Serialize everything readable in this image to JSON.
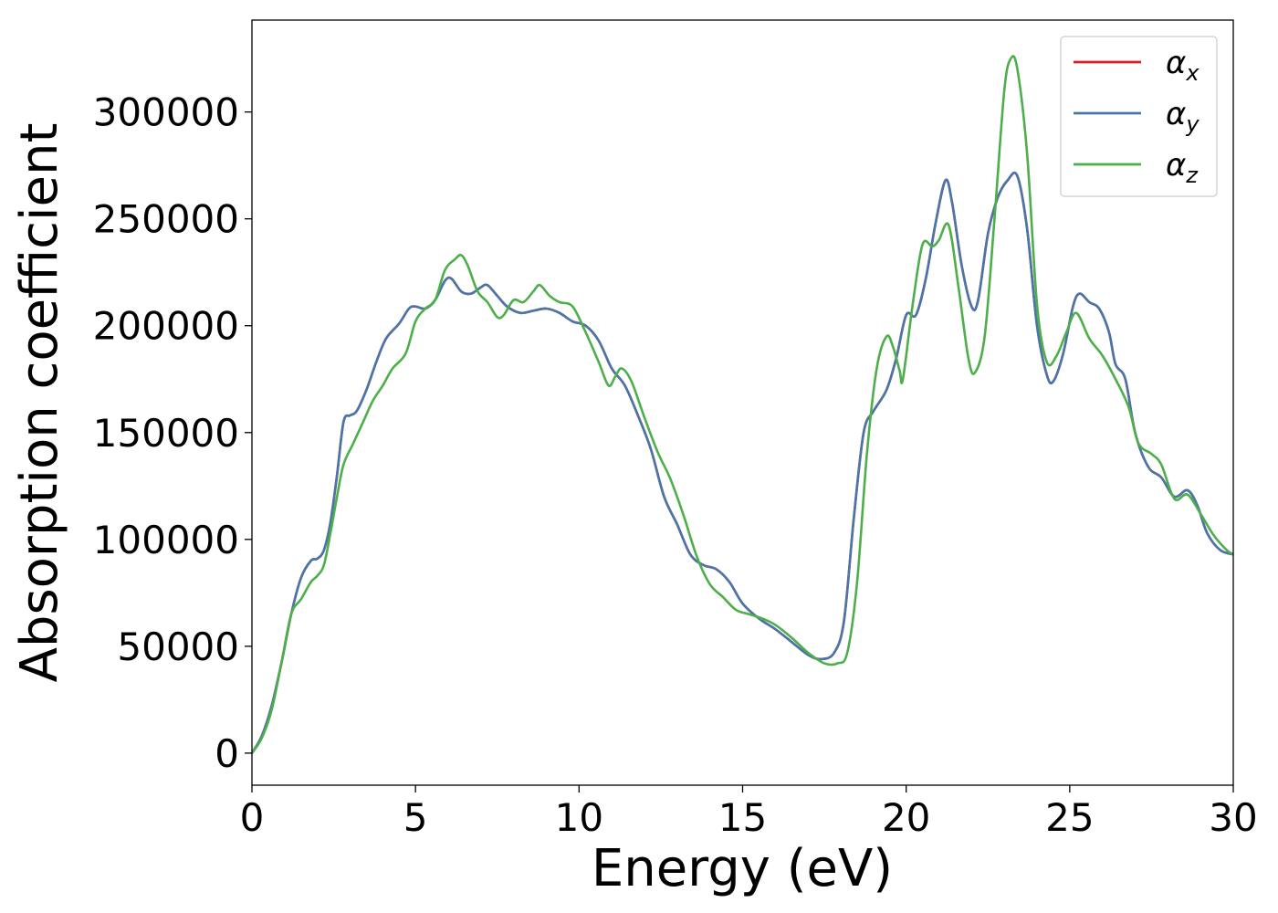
{
  "chart_data": {
    "type": "line",
    "title": "",
    "xlabel": "Energy (eV)",
    "ylabel": "Absorption coefficient",
    "xlim": [
      0,
      30
    ],
    "ylim": [
      -15000,
      343000
    ],
    "x_ticks": [
      0,
      5,
      10,
      15,
      20,
      25,
      30
    ],
    "x_tick_labels": [
      "0",
      "5",
      "10",
      "15",
      "20",
      "25",
      "30"
    ],
    "y_ticks": [
      0,
      50000,
      100000,
      150000,
      200000,
      250000,
      300000
    ],
    "y_tick_labels": [
      "0",
      "50000",
      "100000",
      "150000",
      "200000",
      "250000",
      "300000"
    ],
    "grid": false,
    "legend_position": "top-right",
    "series": [
      {
        "name": "α_x",
        "label_main": "α",
        "label_sub": "x",
        "color": "#e41a1c",
        "points": [
          [
            0,
            0
          ],
          [
            0.3,
            8000
          ],
          [
            0.6,
            22000
          ],
          [
            0.9,
            42000
          ],
          [
            1.2,
            65000
          ],
          [
            1.5,
            82000
          ],
          [
            1.8,
            90000
          ],
          [
            2.0,
            91000
          ],
          [
            2.2,
            95000
          ],
          [
            2.4,
            108000
          ],
          [
            2.6,
            130000
          ],
          [
            2.8,
            155000
          ],
          [
            3.0,
            158000
          ],
          [
            3.2,
            160000
          ],
          [
            3.5,
            170000
          ],
          [
            3.8,
            183000
          ],
          [
            4.1,
            194000
          ],
          [
            4.5,
            201000
          ],
          [
            4.8,
            208000
          ],
          [
            5.0,
            209000
          ],
          [
            5.3,
            208000
          ],
          [
            5.6,
            212000
          ],
          [
            5.9,
            221000
          ],
          [
            6.1,
            222000
          ],
          [
            6.4,
            216000
          ],
          [
            6.7,
            215000
          ],
          [
            7.0,
            218000
          ],
          [
            7.2,
            219000
          ],
          [
            7.5,
            214000
          ],
          [
            7.8,
            209000
          ],
          [
            8.2,
            206000
          ],
          [
            8.6,
            207000
          ],
          [
            9.0,
            208000
          ],
          [
            9.4,
            206000
          ],
          [
            9.8,
            202000
          ],
          [
            10.2,
            200000
          ],
          [
            10.6,
            193000
          ],
          [
            11.0,
            180000
          ],
          [
            11.4,
            172000
          ],
          [
            11.8,
            158000
          ],
          [
            12.2,
            142000
          ],
          [
            12.6,
            120000
          ],
          [
            13.0,
            107000
          ],
          [
            13.4,
            93000
          ],
          [
            13.8,
            88000
          ],
          [
            14.2,
            86000
          ],
          [
            14.6,
            80000
          ],
          [
            15.0,
            70000
          ],
          [
            15.5,
            63000
          ],
          [
            16.0,
            58000
          ],
          [
            16.5,
            52000
          ],
          [
            17.0,
            46000
          ],
          [
            17.4,
            44000
          ],
          [
            17.8,
            47000
          ],
          [
            18.1,
            62000
          ],
          [
            18.4,
            110000
          ],
          [
            18.7,
            150000
          ],
          [
            19.0,
            160000
          ],
          [
            19.4,
            170000
          ],
          [
            19.7,
            185000
          ],
          [
            20.0,
            205000
          ],
          [
            20.3,
            205000
          ],
          [
            20.6,
            222000
          ],
          [
            20.9,
            248000
          ],
          [
            21.2,
            268000
          ],
          [
            21.4,
            258000
          ],
          [
            21.7,
            228000
          ],
          [
            22.0,
            209000
          ],
          [
            22.2,
            212000
          ],
          [
            22.5,
            243000
          ],
          [
            22.8,
            260000
          ],
          [
            23.1,
            268000
          ],
          [
            23.4,
            270000
          ],
          [
            23.7,
            245000
          ],
          [
            24.0,
            200000
          ],
          [
            24.3,
            177000
          ],
          [
            24.5,
            174000
          ],
          [
            24.8,
            187000
          ],
          [
            25.1,
            209000
          ],
          [
            25.3,
            215000
          ],
          [
            25.6,
            211000
          ],
          [
            25.9,
            208000
          ],
          [
            26.2,
            197000
          ],
          [
            26.4,
            182000
          ],
          [
            26.7,
            175000
          ],
          [
            27.0,
            150000
          ],
          [
            27.4,
            134000
          ],
          [
            27.8,
            129000
          ],
          [
            28.2,
            120000
          ],
          [
            28.6,
            123000
          ],
          [
            28.9,
            116000
          ],
          [
            29.2,
            103000
          ],
          [
            29.6,
            95000
          ],
          [
            30.0,
            93000
          ]
        ]
      },
      {
        "name": "α_y",
        "label_main": "α",
        "label_sub": "y",
        "color": "#4777aa",
        "points": [
          [
            0,
            0
          ],
          [
            0.3,
            8000
          ],
          [
            0.6,
            22000
          ],
          [
            0.9,
            42000
          ],
          [
            1.2,
            65000
          ],
          [
            1.5,
            82000
          ],
          [
            1.8,
            90000
          ],
          [
            2.0,
            91000
          ],
          [
            2.2,
            95000
          ],
          [
            2.4,
            108000
          ],
          [
            2.6,
            130000
          ],
          [
            2.8,
            155000
          ],
          [
            3.0,
            158000
          ],
          [
            3.2,
            160000
          ],
          [
            3.5,
            170000
          ],
          [
            3.8,
            183000
          ],
          [
            4.1,
            194000
          ],
          [
            4.5,
            201000
          ],
          [
            4.8,
            208000
          ],
          [
            5.0,
            209000
          ],
          [
            5.3,
            208000
          ],
          [
            5.6,
            212000
          ],
          [
            5.9,
            221000
          ],
          [
            6.1,
            222000
          ],
          [
            6.4,
            216000
          ],
          [
            6.7,
            215000
          ],
          [
            7.0,
            218000
          ],
          [
            7.2,
            219000
          ],
          [
            7.5,
            214000
          ],
          [
            7.8,
            209000
          ],
          [
            8.2,
            206000
          ],
          [
            8.6,
            207000
          ],
          [
            9.0,
            208000
          ],
          [
            9.4,
            206000
          ],
          [
            9.8,
            202000
          ],
          [
            10.2,
            200000
          ],
          [
            10.6,
            193000
          ],
          [
            11.0,
            180000
          ],
          [
            11.4,
            172000
          ],
          [
            11.8,
            158000
          ],
          [
            12.2,
            142000
          ],
          [
            12.6,
            120000
          ],
          [
            13.0,
            107000
          ],
          [
            13.4,
            93000
          ],
          [
            13.8,
            88000
          ],
          [
            14.2,
            86000
          ],
          [
            14.6,
            80000
          ],
          [
            15.0,
            70000
          ],
          [
            15.5,
            63000
          ],
          [
            16.0,
            58000
          ],
          [
            16.5,
            52000
          ],
          [
            17.0,
            46000
          ],
          [
            17.4,
            44000
          ],
          [
            17.8,
            47000
          ],
          [
            18.1,
            62000
          ],
          [
            18.4,
            110000
          ],
          [
            18.7,
            150000
          ],
          [
            19.0,
            160000
          ],
          [
            19.4,
            170000
          ],
          [
            19.7,
            185000
          ],
          [
            20.0,
            205000
          ],
          [
            20.3,
            205000
          ],
          [
            20.6,
            222000
          ],
          [
            20.9,
            248000
          ],
          [
            21.2,
            268000
          ],
          [
            21.4,
            258000
          ],
          [
            21.7,
            228000
          ],
          [
            22.0,
            209000
          ],
          [
            22.2,
            212000
          ],
          [
            22.5,
            243000
          ],
          [
            22.8,
            260000
          ],
          [
            23.1,
            268000
          ],
          [
            23.4,
            270000
          ],
          [
            23.7,
            245000
          ],
          [
            24.0,
            200000
          ],
          [
            24.3,
            177000
          ],
          [
            24.5,
            174000
          ],
          [
            24.8,
            187000
          ],
          [
            25.1,
            209000
          ],
          [
            25.3,
            215000
          ],
          [
            25.6,
            211000
          ],
          [
            25.9,
            208000
          ],
          [
            26.2,
            197000
          ],
          [
            26.4,
            182000
          ],
          [
            26.7,
            175000
          ],
          [
            27.0,
            150000
          ],
          [
            27.4,
            134000
          ],
          [
            27.8,
            129000
          ],
          [
            28.2,
            120000
          ],
          [
            28.6,
            123000
          ],
          [
            28.9,
            116000
          ],
          [
            29.2,
            103000
          ],
          [
            29.6,
            95000
          ],
          [
            30.0,
            93000
          ]
        ]
      },
      {
        "name": "α_z",
        "label_main": "α",
        "label_sub": "z",
        "color": "#4daf4a",
        "points": [
          [
            0,
            0
          ],
          [
            0.3,
            7000
          ],
          [
            0.6,
            20000
          ],
          [
            0.9,
            42000
          ],
          [
            1.2,
            65000
          ],
          [
            1.5,
            72000
          ],
          [
            1.8,
            80000
          ],
          [
            2.0,
            83000
          ],
          [
            2.2,
            88000
          ],
          [
            2.4,
            103000
          ],
          [
            2.6,
            120000
          ],
          [
            2.8,
            135000
          ],
          [
            3.1,
            145000
          ],
          [
            3.4,
            155000
          ],
          [
            3.7,
            165000
          ],
          [
            4.0,
            172000
          ],
          [
            4.3,
            180000
          ],
          [
            4.7,
            187000
          ],
          [
            5.0,
            202000
          ],
          [
            5.3,
            208000
          ],
          [
            5.6,
            212000
          ],
          [
            5.9,
            226000
          ],
          [
            6.2,
            231000
          ],
          [
            6.4,
            233000
          ],
          [
            6.6,
            228000
          ],
          [
            6.9,
            216000
          ],
          [
            7.2,
            211000
          ],
          [
            7.5,
            204000
          ],
          [
            7.7,
            205000
          ],
          [
            8.0,
            212000
          ],
          [
            8.3,
            211000
          ],
          [
            8.6,
            216000
          ],
          [
            8.8,
            219000
          ],
          [
            9.1,
            214000
          ],
          [
            9.4,
            211000
          ],
          [
            9.8,
            209000
          ],
          [
            10.2,
            197000
          ],
          [
            10.6,
            183000
          ],
          [
            10.9,
            172000
          ],
          [
            11.1,
            176000
          ],
          [
            11.3,
            180000
          ],
          [
            11.6,
            174000
          ],
          [
            12.0,
            157000
          ],
          [
            12.4,
            141000
          ],
          [
            12.8,
            128000
          ],
          [
            13.2,
            111000
          ],
          [
            13.6,
            92000
          ],
          [
            14.0,
            79000
          ],
          [
            14.4,
            73000
          ],
          [
            14.8,
            67000
          ],
          [
            15.2,
            65000
          ],
          [
            15.6,
            63000
          ],
          [
            16.0,
            60000
          ],
          [
            16.5,
            54000
          ],
          [
            17.0,
            47000
          ],
          [
            17.5,
            42000
          ],
          [
            17.9,
            42000
          ],
          [
            18.2,
            47000
          ],
          [
            18.5,
            80000
          ],
          [
            18.8,
            140000
          ],
          [
            19.1,
            180000
          ],
          [
            19.4,
            195000
          ],
          [
            19.6,
            190000
          ],
          [
            19.8,
            179000
          ],
          [
            19.9,
            175000
          ],
          [
            20.2,
            210000
          ],
          [
            20.5,
            238000
          ],
          [
            20.8,
            237000
          ],
          [
            21.0,
            240000
          ],
          [
            21.3,
            247000
          ],
          [
            21.6,
            218000
          ],
          [
            21.9,
            185000
          ],
          [
            22.1,
            178000
          ],
          [
            22.4,
            195000
          ],
          [
            22.7,
            250000
          ],
          [
            23.0,
            310000
          ],
          [
            23.2,
            325000
          ],
          [
            23.4,
            320000
          ],
          [
            23.7,
            280000
          ],
          [
            24.0,
            210000
          ],
          [
            24.3,
            183000
          ],
          [
            24.6,
            186000
          ],
          [
            24.9,
            197000
          ],
          [
            25.2,
            206000
          ],
          [
            25.6,
            194000
          ],
          [
            26.0,
            186000
          ],
          [
            26.4,
            175000
          ],
          [
            26.8,
            162000
          ],
          [
            27.1,
            145000
          ],
          [
            27.5,
            140000
          ],
          [
            27.8,
            135000
          ],
          [
            28.2,
            119000
          ],
          [
            28.6,
            121000
          ],
          [
            29.0,
            112000
          ],
          [
            29.4,
            102000
          ],
          [
            29.8,
            95000
          ],
          [
            30.0,
            93000
          ]
        ]
      }
    ]
  }
}
